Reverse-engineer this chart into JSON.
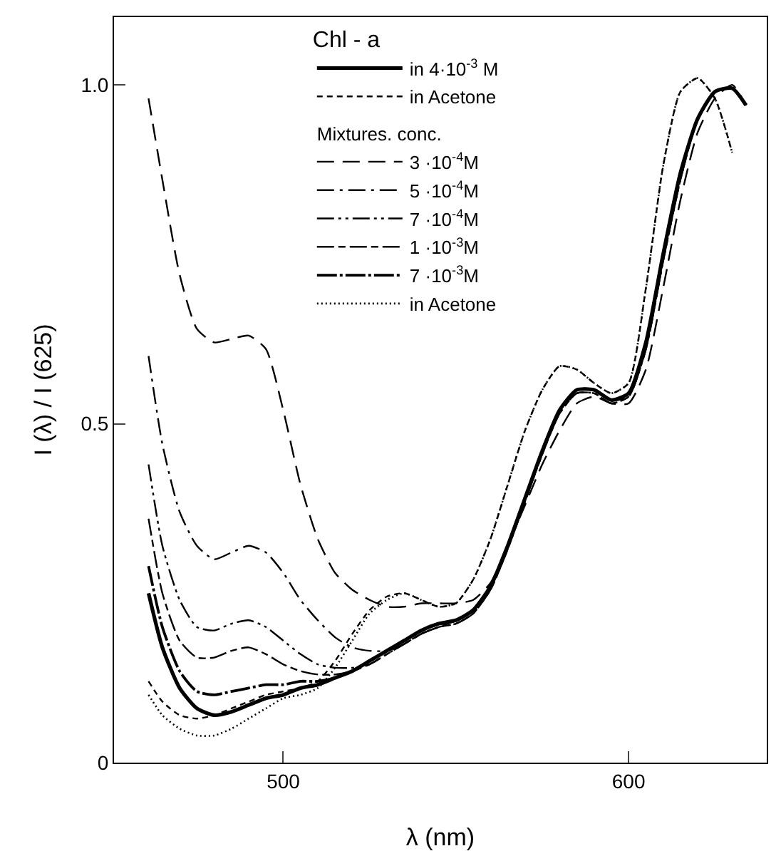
{
  "chart_data": {
    "type": "line",
    "xlabel": "λ (nm)",
    "ylabel": "I (λ) / I (625)",
    "xlim": [
      451,
      640
    ],
    "ylim": [
      0,
      1.1
    ],
    "xticks": [
      500,
      600
    ],
    "yticks": [
      0,
      0.5,
      {
        "value": 1,
        "label": "1.0"
      }
    ],
    "grid": false,
    "legend_title": "Chl - a",
    "annotations": [
      "Mixtures. conc."
    ],
    "legend": "top",
    "marker": "none",
    "x": [
      461,
      465,
      470,
      475,
      480,
      485,
      490,
      495,
      500,
      505,
      510,
      515,
      520,
      525,
      530,
      535,
      540,
      545,
      550,
      555,
      560,
      565,
      570,
      575,
      580,
      585,
      590,
      595,
      600,
      605,
      610,
      615,
      620,
      625,
      630,
      634
    ],
    "series": [
      {
        "name": "in 4·10$^{-3}$ M",
        "color": "#000000",
        "line_style": "solid",
        "values": [
          0.25,
          0.17,
          0.11,
          0.08,
          0.07,
          0.075,
          0.085,
          0.095,
          0.1,
          0.11,
          0.115,
          0.125,
          0.135,
          0.15,
          0.165,
          0.18,
          0.195,
          0.205,
          0.21,
          0.225,
          0.26,
          0.32,
          0.39,
          0.46,
          0.52,
          0.55,
          0.55,
          0.535,
          0.545,
          0.62,
          0.75,
          0.87,
          0.95,
          0.99,
          0.995,
          0.97
        ]
      },
      {
        "name": "in Acetone",
        "color": "#000000",
        "line_style": "dashed",
        "values": [
          0.12,
          0.09,
          0.07,
          0.065,
          0.07,
          0.08,
          0.09,
          0.1,
          0.105,
          0.11,
          0.12,
          0.15,
          0.19,
          0.225,
          0.245,
          0.25,
          0.24,
          0.23,
          0.235,
          0.27,
          0.33,
          0.41,
          0.49,
          0.55,
          0.585,
          0.58,
          0.56,
          0.545,
          0.56,
          0.7,
          0.88,
          0.99,
          1.01,
          0.98,
          0.9,
          null
        ]
      },
      {
        "name": "3 ·10$^{-4}$M",
        "color": "#000000",
        "line_style": "longdash",
        "values": [
          0.98,
          0.86,
          0.72,
          0.64,
          0.62,
          0.625,
          0.63,
          0.61,
          0.52,
          0.41,
          0.33,
          0.28,
          0.255,
          0.24,
          0.23,
          0.23,
          0.235,
          0.235,
          0.235,
          0.24,
          0.265,
          0.32,
          0.38,
          0.44,
          0.49,
          0.53,
          0.54,
          0.53,
          0.53,
          0.58,
          0.7,
          0.83,
          0.93,
          0.98,
          1.0,
          0.97
        ]
      },
      {
        "name": "5 ·10$^{-4}$M",
        "color": "#000000",
        "line_style": "dashdot",
        "values": [
          0.6,
          0.47,
          0.37,
          0.32,
          0.3,
          0.31,
          0.32,
          0.31,
          0.28,
          0.24,
          0.21,
          0.185,
          0.17,
          0.165,
          0.165,
          0.175,
          0.19,
          0.2,
          0.21,
          0.225,
          0.26,
          0.32,
          0.39,
          0.46,
          0.52,
          0.55,
          0.55,
          0.535,
          0.54,
          0.61,
          0.74,
          0.86,
          0.95,
          0.99,
          0.995,
          0.97
        ]
      },
      {
        "name": "7 ·10$^{-4}$M",
        "color": "#000000",
        "line_style": "dashdotdot",
        "values": [
          0.44,
          0.32,
          0.24,
          0.2,
          0.195,
          0.205,
          0.21,
          0.2,
          0.18,
          0.16,
          0.145,
          0.14,
          0.14,
          0.145,
          0.16,
          0.175,
          0.19,
          0.2,
          0.205,
          0.22,
          0.255,
          0.315,
          0.385,
          0.455,
          0.515,
          0.545,
          0.545,
          0.53,
          0.54,
          0.61,
          0.74,
          0.86,
          0.95,
          0.99,
          0.995,
          0.97
        ]
      },
      {
        "name": "1 ·10$^{-3}$M",
        "color": "#000000",
        "line_style": "longdashdash",
        "values": [
          0.36,
          0.25,
          0.18,
          0.155,
          0.155,
          0.165,
          0.17,
          0.16,
          0.145,
          0.135,
          0.13,
          0.13,
          0.135,
          0.145,
          0.16,
          0.175,
          0.19,
          0.2,
          0.205,
          0.22,
          0.255,
          0.315,
          0.385,
          0.455,
          0.515,
          0.545,
          0.545,
          0.53,
          0.54,
          0.61,
          0.74,
          0.86,
          0.95,
          0.99,
          0.995,
          0.97
        ]
      },
      {
        "name": "7 ·10$^{-3}$M",
        "color": "#000000",
        "line_style": "densedashdot",
        "values": [
          0.29,
          0.2,
          0.135,
          0.105,
          0.1,
          0.105,
          0.11,
          0.115,
          0.115,
          0.12,
          0.12,
          0.125,
          0.135,
          0.15,
          0.165,
          0.18,
          0.195,
          0.205,
          0.21,
          0.225,
          0.26,
          0.32,
          0.39,
          0.46,
          0.52,
          0.55,
          0.55,
          0.535,
          0.545,
          0.62,
          0.75,
          0.87,
          0.95,
          0.99,
          0.995,
          0.97
        ]
      },
      {
        "name": "in Acetone",
        "color": "#000000",
        "line_style": "dotted",
        "values": [
          0.1,
          0.07,
          0.05,
          0.04,
          0.04,
          0.05,
          0.065,
          0.08,
          0.095,
          0.1,
          0.11,
          0.14,
          0.18,
          0.22,
          0.24,
          0.25,
          0.24,
          0.23,
          0.235,
          0.27,
          0.33,
          0.41,
          0.49,
          0.55,
          0.585,
          0.58,
          0.56,
          0.545,
          0.56,
          0.7,
          0.88,
          0.99,
          1.01,
          0.98,
          0.9,
          null
        ]
      }
    ]
  }
}
